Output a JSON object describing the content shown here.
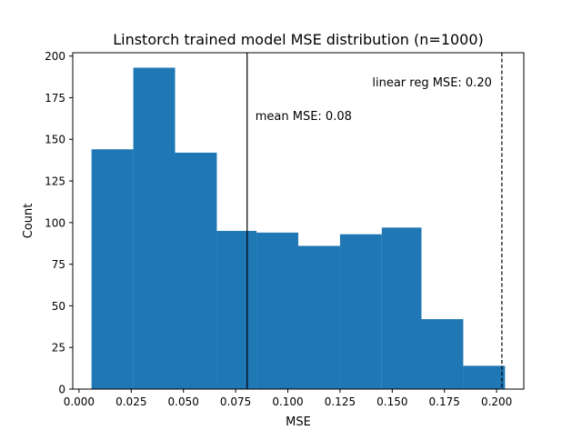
{
  "chart_data": {
    "type": "bar",
    "title": "Linstorch trained model MSE distribution (n=1000)",
    "xlabel": "MSE",
    "ylabel": "Count",
    "xlim": [
      -0.003,
      0.213
    ],
    "ylim": [
      0,
      202
    ],
    "bar_color": "#1f77b4",
    "bins": [
      {
        "x0": 0.006,
        "x1": 0.026,
        "count": 144
      },
      {
        "x0": 0.026,
        "x1": 0.046,
        "count": 193
      },
      {
        "x0": 0.046,
        "x1": 0.066,
        "count": 142
      },
      {
        "x0": 0.066,
        "x1": 0.085,
        "count": 95
      },
      {
        "x0": 0.085,
        "x1": 0.105,
        "count": 94
      },
      {
        "x0": 0.105,
        "x1": 0.125,
        "count": 86
      },
      {
        "x0": 0.125,
        "x1": 0.145,
        "count": 93
      },
      {
        "x0": 0.145,
        "x1": 0.164,
        "count": 97
      },
      {
        "x0": 0.164,
        "x1": 0.184,
        "count": 42
      },
      {
        "x0": 0.184,
        "x1": 0.204,
        "count": 14
      }
    ],
    "x_ticks": [
      {
        "value": 0.0,
        "label": "0.000"
      },
      {
        "value": 0.025,
        "label": "0.025"
      },
      {
        "value": 0.05,
        "label": "0.050"
      },
      {
        "value": 0.075,
        "label": "0.075"
      },
      {
        "value": 0.1,
        "label": "0.100"
      },
      {
        "value": 0.125,
        "label": "0.125"
      },
      {
        "value": 0.15,
        "label": "0.150"
      },
      {
        "value": 0.175,
        "label": "0.175"
      },
      {
        "value": 0.2,
        "label": "0.200"
      }
    ],
    "y_ticks": [
      {
        "value": 0,
        "label": "0"
      },
      {
        "value": 25,
        "label": "25"
      },
      {
        "value": 50,
        "label": "50"
      },
      {
        "value": 75,
        "label": "75"
      },
      {
        "value": 100,
        "label": "100"
      },
      {
        "value": 125,
        "label": "125"
      },
      {
        "value": 150,
        "label": "150"
      },
      {
        "value": 175,
        "label": "175"
      },
      {
        "value": 200,
        "label": "200"
      }
    ],
    "reference_lines": [
      {
        "x": 0.0805,
        "style": "solid",
        "label": "mean MSE: 0.08"
      },
      {
        "x": 0.2025,
        "style": "dashed",
        "label": "linear reg MSE: 0.20"
      }
    ],
    "grid": false,
    "legend": "none"
  }
}
